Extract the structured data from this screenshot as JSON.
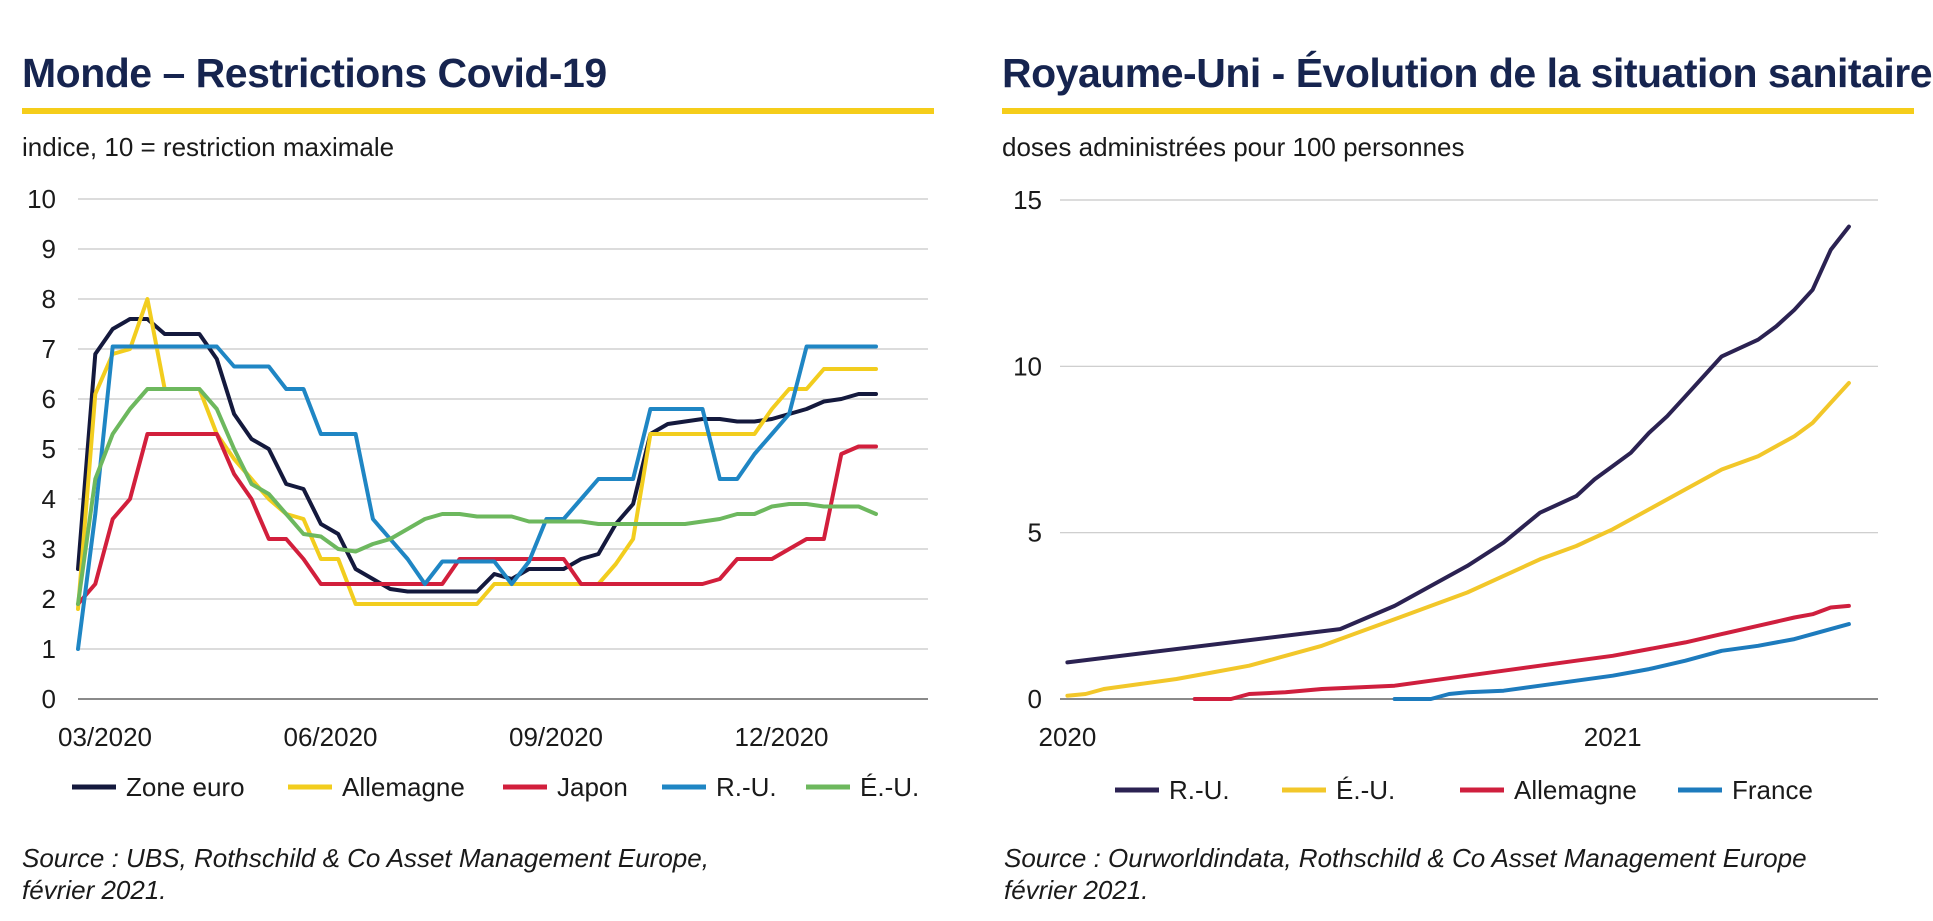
{
  "left": {
    "title": "Monde – Restrictions Covid-19",
    "subtitle": "indice, 10 = restriction maximale",
    "source_line1": "Source : UBS, Rothschild & Co Asset Management Europe,",
    "source_line2": "février 2021."
  },
  "right": {
    "title": "Royaume-Uni - Évolution de la situation sanitaire",
    "subtitle": "doses administrées pour 100 personnes",
    "source_line1": "Source : Ourworldindata, Rothschild & Co Asset Management Europe",
    "source_line2": "février 2021."
  },
  "colors": {
    "title": "#16244f",
    "rule": "#f5cd1a",
    "grid": "#c8c8c8"
  },
  "chart_data": [
    {
      "type": "line",
      "title": "Monde – Restrictions Covid-19",
      "ylabel": "indice, 10 = restriction maximale",
      "ylim": [
        0,
        10
      ],
      "yticks": [
        0,
        1,
        2,
        3,
        4,
        5,
        6,
        7,
        8,
        9,
        10
      ],
      "x_ticks": [
        {
          "label": "03/2020",
          "x": 0
        },
        {
          "label": "06/2020",
          "x": 13
        },
        {
          "label": "09/2020",
          "x": 26
        },
        {
          "label": "12/2020",
          "x": 39
        }
      ],
      "xlim": [
        0,
        49
      ],
      "grid": true,
      "legend_position": "bottom",
      "series": [
        {
          "name": "Zone euro",
          "color": "#14193d",
          "values": [
            2.6,
            6.9,
            7.4,
            7.6,
            7.6,
            7.3,
            7.3,
            7.3,
            6.8,
            5.7,
            5.2,
            5.0,
            4.3,
            4.2,
            3.5,
            3.3,
            2.6,
            2.4,
            2.2,
            2.15,
            2.15,
            2.15,
            2.15,
            2.15,
            2.5,
            2.4,
            2.6,
            2.6,
            2.6,
            2.8,
            2.9,
            3.5,
            3.9,
            5.3,
            5.5,
            5.55,
            5.6,
            5.6,
            5.55,
            5.55,
            5.6,
            5.7,
            5.8,
            5.95,
            6.0,
            6.1,
            6.1
          ]
        },
        {
          "name": "Allemagne",
          "color": "#f2cd1e",
          "values": [
            1.8,
            6.1,
            6.9,
            7.0,
            8.0,
            6.2,
            6.2,
            6.2,
            5.3,
            4.8,
            4.4,
            4.0,
            3.7,
            3.6,
            2.8,
            2.8,
            1.9,
            1.9,
            1.9,
            1.9,
            1.9,
            1.9,
            1.9,
            1.9,
            2.3,
            2.3,
            2.3,
            2.3,
            2.3,
            2.3,
            2.3,
            2.7,
            3.2,
            5.3,
            5.3,
            5.3,
            5.3,
            5.3,
            5.3,
            5.3,
            5.8,
            6.2,
            6.2,
            6.6,
            6.6,
            6.6,
            6.6
          ]
        },
        {
          "name": "Japon",
          "color": "#d21f3c",
          "values": [
            1.9,
            2.3,
            3.6,
            4.0,
            5.3,
            5.3,
            5.3,
            5.3,
            5.3,
            4.5,
            4.0,
            3.2,
            3.2,
            2.8,
            2.3,
            2.3,
            2.3,
            2.3,
            2.3,
            2.3,
            2.3,
            2.3,
            2.8,
            2.8,
            2.8,
            2.8,
            2.8,
            2.8,
            2.8,
            2.3,
            2.3,
            2.3,
            2.3,
            2.3,
            2.3,
            2.3,
            2.3,
            2.4,
            2.8,
            2.8,
            2.8,
            3.0,
            3.2,
            3.2,
            4.9,
            5.05,
            5.05
          ]
        },
        {
          "name": "R.-U.",
          "color": "#1f86c4",
          "values": [
            1.0,
            3.7,
            7.05,
            7.05,
            7.05,
            7.05,
            7.05,
            7.05,
            7.05,
            6.65,
            6.65,
            6.65,
            6.2,
            6.2,
            5.3,
            5.3,
            5.3,
            3.6,
            3.2,
            2.8,
            2.3,
            2.75,
            2.75,
            2.75,
            2.75,
            2.3,
            2.75,
            3.6,
            3.6,
            4.0,
            4.4,
            4.4,
            4.4,
            5.8,
            5.8,
            5.8,
            5.8,
            4.4,
            4.4,
            4.9,
            5.3,
            5.7,
            7.05,
            7.05,
            7.05,
            7.05,
            7.05
          ]
        },
        {
          "name": "É.-U.",
          "color": "#6db85e",
          "values": [
            1.9,
            4.4,
            5.3,
            5.8,
            6.2,
            6.2,
            6.2,
            6.2,
            5.8,
            5.0,
            4.3,
            4.1,
            3.7,
            3.3,
            3.25,
            3.0,
            2.95,
            3.1,
            3.2,
            3.4,
            3.6,
            3.7,
            3.7,
            3.65,
            3.65,
            3.65,
            3.55,
            3.55,
            3.55,
            3.55,
            3.5,
            3.5,
            3.5,
            3.5,
            3.5,
            3.5,
            3.55,
            3.6,
            3.7,
            3.7,
            3.85,
            3.9,
            3.9,
            3.85,
            3.85,
            3.85,
            3.7
          ]
        }
      ]
    },
    {
      "type": "line",
      "title": "Royaume-Uni - Évolution de la situation sanitaire",
      "ylabel": "doses administrées pour 100 personnes",
      "ylim": [
        0,
        15
      ],
      "yticks": [
        0,
        5,
        10,
        15
      ],
      "x_ticks": [
        {
          "label": "2020",
          "x": 0
        },
        {
          "label": "2021",
          "x": 15
        }
      ],
      "xlim": [
        -0.7,
        22.3
      ],
      "grid": true,
      "legend_position": "bottom",
      "series": [
        {
          "name": "R.-U.",
          "color": "#2b2252",
          "x": [
            0,
            7.5,
            9,
            10,
            11,
            12,
            13,
            14,
            14.5,
            15,
            15.5,
            16,
            16.5,
            17,
            18,
            19,
            19.5,
            20,
            20.5,
            21,
            21.5
          ],
          "values": [
            1.1,
            2.1,
            2.8,
            3.4,
            4.0,
            4.7,
            5.6,
            6.1,
            6.6,
            7.0,
            7.4,
            8.0,
            8.5,
            9.1,
            10.3,
            10.8,
            11.2,
            11.7,
            12.3,
            13.5,
            14.2
          ]
        },
        {
          "name": "É.-U.",
          "color": "#f2c72a",
          "x": [
            0,
            0.5,
            1,
            2,
            3,
            4,
            5,
            6,
            7,
            8,
            9,
            10,
            11,
            12,
            13,
            14,
            15,
            16,
            17,
            18,
            19,
            20,
            20.5,
            21,
            21.5
          ],
          "values": [
            0.1,
            0.15,
            0.3,
            0.45,
            0.6,
            0.8,
            1.0,
            1.3,
            1.6,
            2.0,
            2.4,
            2.8,
            3.2,
            3.7,
            4.2,
            4.6,
            5.1,
            5.7,
            6.3,
            6.9,
            7.3,
            7.9,
            8.3,
            8.9,
            9.5
          ]
        },
        {
          "name": "Allemagne",
          "color": "#cf1f3e",
          "x": [
            3.5,
            4.5,
            5,
            6,
            7,
            8,
            9,
            10,
            11,
            12,
            13,
            14,
            15,
            16,
            17,
            18,
            19,
            20,
            20.5,
            21,
            21.5
          ],
          "values": [
            0.0,
            0.0,
            0.15,
            0.2,
            0.3,
            0.35,
            0.4,
            0.55,
            0.7,
            0.85,
            1.0,
            1.15,
            1.3,
            1.5,
            1.7,
            1.95,
            2.2,
            2.45,
            2.55,
            2.75,
            2.8
          ]
        },
        {
          "name": "France",
          "color": "#1d7bbd",
          "x": [
            9,
            10,
            10.5,
            11,
            12,
            13,
            14,
            15,
            16,
            17,
            18,
            19,
            20,
            20.5,
            21,
            21.5
          ],
          "values": [
            0.0,
            0.0,
            0.15,
            0.2,
            0.25,
            0.4,
            0.55,
            0.7,
            0.9,
            1.15,
            1.45,
            1.6,
            1.8,
            1.95,
            2.1,
            2.25
          ]
        }
      ]
    }
  ]
}
